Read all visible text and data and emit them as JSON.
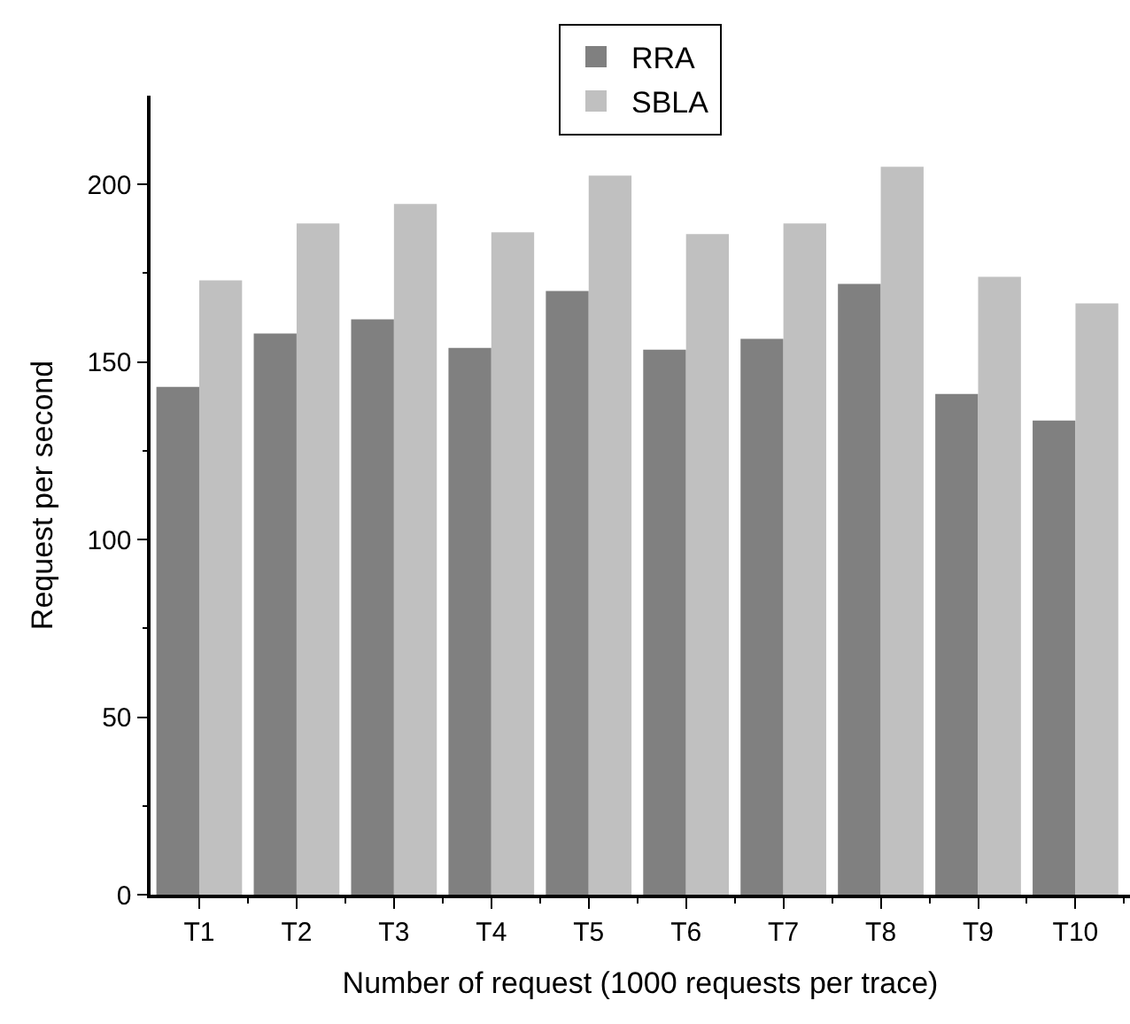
{
  "chart_data": {
    "type": "bar",
    "xlabel": "Number of request (1000 requests per trace)",
    "ylabel": "Request per second",
    "categories": [
      "T1",
      "T2",
      "T3",
      "T4",
      "T5",
      "T6",
      "T7",
      "T8",
      "T9",
      "T10"
    ],
    "series": [
      {
        "name": "RRA",
        "color": "#808080",
        "values": [
          143,
          158,
          162,
          154,
          170,
          153.5,
          156.5,
          172,
          141,
          133.5
        ]
      },
      {
        "name": "SBLA",
        "color": "#c0c0c0",
        "values": [
          173,
          189,
          194.5,
          186.5,
          202.5,
          186,
          189,
          205,
          174,
          166.5
        ]
      }
    ],
    "ylim": [
      0,
      225
    ],
    "yticks": [
      0,
      50,
      100,
      150,
      200
    ],
    "legend": "top"
  }
}
